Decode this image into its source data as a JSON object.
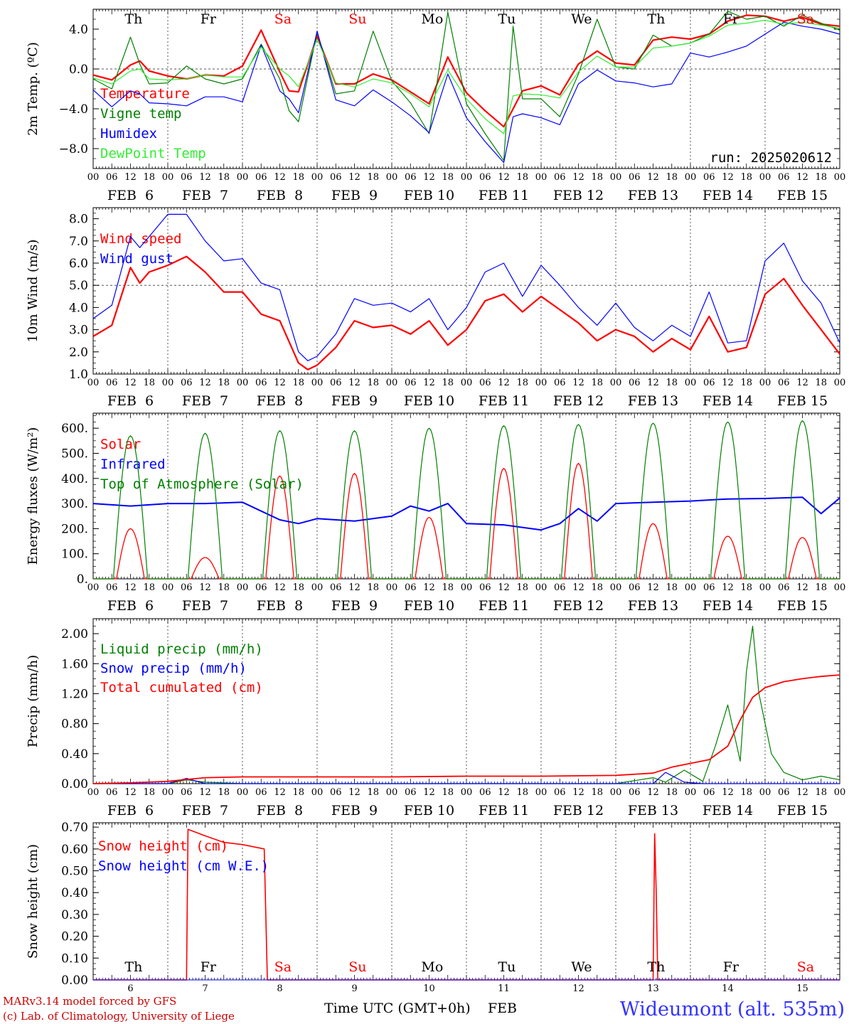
{
  "colors": {
    "red": "#ff0000",
    "green": "#008000",
    "blue": "#0000ff",
    "lightgreen": "#33ee33",
    "black": "#000000",
    "darkred": "#cc0000",
    "title": "#3333ff"
  },
  "footer": {
    "credit_line1": "MARv3.14 model forced by GFS",
    "credit_line2": "(c) Lab. of Climatology, University of Liege",
    "axis_title": "Time UTC (GMT+0h)",
    "month": "FEB",
    "station": "Wideumont (alt. 535m)"
  },
  "days": [
    {
      "label": "Th",
      "weekend": false,
      "date": "FEB  6",
      "num": "6"
    },
    {
      "label": "Fr",
      "weekend": false,
      "date": "FEB  7",
      "num": "7"
    },
    {
      "label": "Sa",
      "weekend": true,
      "date": "FEB  8",
      "num": "8"
    },
    {
      "label": "Su",
      "weekend": true,
      "date": "FEB  9",
      "num": "9"
    },
    {
      "label": "Mo",
      "weekend": false,
      "date": "FEB 10",
      "num": "10"
    },
    {
      "label": "Tu",
      "weekend": false,
      "date": "FEB 11",
      "num": "11"
    },
    {
      "label": "We",
      "weekend": false,
      "date": "FEB 12",
      "num": "12"
    },
    {
      "label": "Th",
      "weekend": false,
      "date": "FEB 13",
      "num": "13"
    },
    {
      "label": "Fr",
      "weekend": false,
      "date": "FEB 14",
      "num": "14"
    },
    {
      "label": "Sa",
      "weekend": true,
      "date": "FEB 15",
      "num": "15"
    }
  ],
  "hour_ticks": [
    "00",
    "06",
    "12",
    "18"
  ],
  "chart_data": [
    {
      "type": "line",
      "ylabel": "2m Temp. (ºC)",
      "ylim": [
        -10,
        6
      ],
      "yticks": [
        -8,
        -4,
        0,
        4
      ],
      "tick_labels": [
        "−8.0",
        "−4.0",
        "0.0",
        "4.0"
      ],
      "ref_line": 0,
      "annotation": "run: 2025020612",
      "x_unit": "hours since FEB 6 00 UTC",
      "series": [
        {
          "name": "Temperature",
          "color": "red",
          "width": 2.2,
          "x": [
            0,
            6,
            12,
            15,
            18,
            24,
            30,
            36,
            42,
            48,
            54,
            60,
            63,
            66,
            72,
            78,
            84,
            90,
            96,
            102,
            108,
            114,
            120,
            126,
            132,
            135,
            138,
            144,
            150,
            156,
            162,
            168,
            174,
            180,
            186,
            192,
            198,
            204,
            210,
            216,
            222,
            228,
            234,
            240
          ],
          "y": [
            -0.6,
            -1.1,
            0.4,
            0.8,
            -0.2,
            -0.7,
            -1.0,
            -0.6,
            -0.7,
            0.3,
            3.9,
            -0.3,
            -2.2,
            -2.3,
            3.3,
            -1.5,
            -1.5,
            -0.5,
            -1.1,
            -2.3,
            -3.5,
            1.2,
            -2.4,
            -4.2,
            -5.8,
            -4.0,
            -2.2,
            -1.7,
            -2.6,
            0.5,
            1.8,
            0.6,
            0.4,
            2.9,
            3.2,
            3.0,
            3.5,
            4.8,
            5.4,
            5.3,
            4.8,
            5.2,
            4.5,
            4.3
          ]
        },
        {
          "name": "Vigne temp",
          "color": "green",
          "width": 1.2,
          "x": [
            0,
            6,
            12,
            15,
            18,
            24,
            30,
            36,
            42,
            48,
            54,
            60,
            63,
            66,
            72,
            78,
            84,
            90,
            96,
            102,
            108,
            114,
            120,
            126,
            132,
            135,
            138,
            144,
            150,
            156,
            162,
            168,
            174,
            180,
            186,
            192,
            198,
            204,
            210,
            216,
            222,
            228,
            234,
            240
          ],
          "y": [
            -1.0,
            -2.0,
            3.2,
            0.5,
            -1.5,
            -1.4,
            0.3,
            -1.0,
            -1.5,
            -1.0,
            2.5,
            -1.0,
            -4.2,
            -5.3,
            3.7,
            -2.5,
            -2.2,
            3.8,
            -1.2,
            -3.4,
            -6.5,
            5.7,
            -3.5,
            -6.5,
            -9.2,
            4.3,
            -3.0,
            -3.0,
            -4.8,
            -0.5,
            5.0,
            0.2,
            0.0,
            3.4,
            2.3,
            2.6,
            3.5,
            5.8,
            5.0,
            5.3,
            4.3,
            5.4,
            4.6,
            3.9
          ]
        },
        {
          "name": "Humidex",
          "color": "blue",
          "width": 1.2,
          "x": [
            0,
            6,
            12,
            15,
            18,
            24,
            30,
            36,
            42,
            48,
            54,
            60,
            63,
            66,
            72,
            78,
            84,
            90,
            96,
            102,
            108,
            114,
            120,
            126,
            132,
            135,
            138,
            144,
            150,
            156,
            162,
            168,
            174,
            180,
            186,
            192,
            198,
            204,
            210,
            216,
            222,
            228,
            234,
            240
          ],
          "y": [
            -2.1,
            -3.8,
            -2.2,
            -2.5,
            -3.4,
            -3.5,
            -3.7,
            -2.8,
            -2.8,
            -3.3,
            2.4,
            -2.2,
            -3.0,
            -4.4,
            3.8,
            -3.1,
            -3.7,
            -2.1,
            -3.3,
            -4.7,
            -6.4,
            -0.5,
            -4.9,
            -7.3,
            -9.4,
            -4.8,
            -4.5,
            -4.9,
            -5.6,
            -1.5,
            -0.1,
            -1.2,
            -1.4,
            -1.8,
            -1.5,
            1.6,
            1.2,
            1.7,
            2.3,
            3.5,
            4.7,
            4.3,
            4.0,
            3.5
          ]
        },
        {
          "name": "DewPoint Temp",
          "color": "lightgreen",
          "width": 1.2,
          "x": [
            0,
            6,
            12,
            15,
            18,
            24,
            30,
            36,
            42,
            48,
            54,
            60,
            63,
            66,
            72,
            78,
            84,
            90,
            96,
            102,
            108,
            114,
            120,
            126,
            132,
            135,
            138,
            144,
            150,
            156,
            162,
            168,
            174,
            180,
            186,
            192,
            198,
            204,
            210,
            216,
            222,
            228,
            234,
            240
          ],
          "y": [
            -0.9,
            -1.5,
            -0.2,
            0.0,
            -1.0,
            -1.1,
            -1.0,
            -0.6,
            -0.8,
            -0.8,
            2.2,
            0.0,
            -0.7,
            -1.8,
            3.0,
            -1.4,
            -1.8,
            -1.0,
            -1.4,
            -2.5,
            -3.8,
            -0.1,
            -3.0,
            -5.0,
            -6.5,
            -2.7,
            -2.5,
            -2.6,
            -2.9,
            -0.3,
            1.3,
            0.2,
            0.2,
            2.1,
            2.3,
            2.6,
            3.3,
            4.4,
            4.6,
            4.9,
            4.5,
            4.7,
            4.4,
            4.1
          ]
        }
      ]
    },
    {
      "type": "line",
      "ylabel": "10m Wind (m/s)",
      "ylim": [
        1,
        8.5
      ],
      "yticks": [
        1,
        2,
        3,
        4,
        5,
        6,
        7,
        8
      ],
      "tick_labels": [
        "1.0",
        "2.0",
        "3.0",
        "4.0",
        "5.0",
        "6.0",
        "7.0",
        "8.0"
      ],
      "ref_line": 5,
      "series": [
        {
          "name": "Wind speed",
          "color": "red",
          "width": 2.2,
          "x": [
            0,
            6,
            12,
            15,
            18,
            24,
            30,
            36,
            42,
            48,
            54,
            60,
            66,
            69,
            72,
            78,
            84,
            90,
            96,
            102,
            108,
            114,
            120,
            126,
            132,
            138,
            144,
            150,
            156,
            162,
            168,
            174,
            180,
            186,
            192,
            198,
            204,
            210,
            216,
            222,
            228,
            234,
            240
          ],
          "y": [
            2.7,
            3.2,
            5.8,
            5.1,
            5.6,
            5.9,
            6.3,
            5.6,
            4.7,
            4.7,
            3.7,
            3.4,
            1.5,
            1.2,
            1.4,
            2.2,
            3.4,
            3.1,
            3.2,
            2.8,
            3.4,
            2.3,
            3.0,
            4.3,
            4.6,
            3.8,
            4.5,
            3.9,
            3.3,
            2.5,
            3.0,
            2.7,
            2.0,
            2.6,
            2.1,
            3.6,
            2.0,
            2.2,
            4.6,
            5.3,
            4.1,
            3.0,
            1.9
          ]
        },
        {
          "name": "Wind gust",
          "color": "blue",
          "width": 1.2,
          "x": [
            0,
            6,
            12,
            15,
            18,
            24,
            30,
            36,
            42,
            48,
            54,
            60,
            66,
            69,
            72,
            78,
            84,
            90,
            96,
            102,
            108,
            114,
            120,
            126,
            132,
            138,
            144,
            150,
            156,
            162,
            168,
            174,
            180,
            186,
            192,
            198,
            204,
            210,
            216,
            222,
            228,
            234,
            240
          ],
          "y": [
            3.5,
            4.1,
            7.2,
            6.7,
            7.2,
            8.2,
            8.2,
            7.0,
            6.1,
            6.2,
            5.1,
            4.8,
            2.0,
            1.6,
            1.8,
            2.8,
            4.4,
            4.1,
            4.2,
            3.8,
            4.4,
            3.0,
            4.0,
            5.6,
            6.0,
            4.5,
            5.9,
            5.0,
            4.0,
            3.2,
            4.2,
            3.1,
            2.5,
            3.2,
            2.7,
            4.7,
            2.4,
            2.5,
            6.1,
            6.9,
            5.2,
            4.2,
            2.4
          ]
        }
      ]
    },
    {
      "type": "line",
      "ylabel": "Energy fluxes (W/m²)",
      "ylim": [
        0,
        660
      ],
      "yticks": [
        0,
        100,
        200,
        300,
        400,
        500,
        600
      ],
      "tick_labels": [
        "0.",
        "100.",
        "200.",
        "300.",
        "400.",
        "500.",
        "600."
      ],
      "ref_line": null,
      "series": [
        {
          "name": "Solar",
          "color": "red",
          "width": 1.3,
          "kind": "solar",
          "peaks": [
            200,
            85,
            410,
            420,
            245,
            440,
            460,
            220,
            170,
            165
          ]
        },
        {
          "name": "Infrared",
          "color": "blue",
          "width": 2.0,
          "x": [
            0,
            12,
            24,
            36,
            48,
            60,
            66,
            72,
            84,
            96,
            102,
            108,
            114,
            120,
            132,
            144,
            150,
            156,
            162,
            168,
            180,
            192,
            204,
            216,
            228,
            234,
            240
          ],
          "y": [
            300,
            290,
            300,
            300,
            305,
            235,
            220,
            240,
            230,
            250,
            290,
            270,
            300,
            220,
            215,
            195,
            220,
            280,
            230,
            300,
            305,
            310,
            318,
            320,
            325,
            260,
            322
          ]
        },
        {
          "name": "Top of Atmosphere (Solar)",
          "color": "green",
          "width": 1.2,
          "kind": "solar",
          "peaks": [
            570,
            580,
            590,
            590,
            600,
            610,
            615,
            620,
            625,
            630
          ]
        }
      ]
    },
    {
      "type": "line",
      "ylabel": "Precip (mm/h)",
      "ylim": [
        0,
        2.2
      ],
      "yticks": [
        0,
        0.4,
        0.8,
        1.2,
        1.6,
        2.0
      ],
      "tick_labels": [
        "0.00",
        "0.40",
        "0.80",
        "1.20",
        "1.60",
        "2.00"
      ],
      "ref_line": null,
      "series": [
        {
          "name": "Liquid precip (mm/h)",
          "color": "green",
          "width": 1.2,
          "x": [
            0,
            24,
            30,
            36,
            48,
            96,
            120,
            144,
            168,
            180,
            184,
            190,
            196,
            200,
            204,
            208,
            210,
            212,
            214,
            218,
            222,
            228,
            234,
            240
          ],
          "y": [
            0,
            0,
            0.05,
            0.02,
            0,
            0,
            0,
            0,
            0,
            0.08,
            0.02,
            0.18,
            0.03,
            0.5,
            1.05,
            0.3,
            1.5,
            2.1,
            1.2,
            0.4,
            0.15,
            0.05,
            0.1,
            0.05
          ]
        },
        {
          "name": "Snow precip (mm/h)",
          "color": "blue",
          "width": 1.2,
          "x": [
            0,
            24,
            30,
            36,
            48,
            180,
            184,
            190,
            196,
            240
          ],
          "y": [
            0,
            0,
            0.07,
            0,
            0,
            0,
            0.15,
            0.02,
            0,
            0
          ]
        },
        {
          "name": "Total cumulated (cm)",
          "color": "red",
          "width": 1.8,
          "x": [
            0,
            12,
            24,
            36,
            48,
            72,
            96,
            120,
            144,
            168,
            180,
            186,
            192,
            198,
            204,
            208,
            212,
            216,
            222,
            228,
            234,
            240
          ],
          "y": [
            0,
            0.01,
            0.03,
            0.08,
            0.09,
            0.09,
            0.09,
            0.1,
            0.1,
            0.11,
            0.14,
            0.22,
            0.27,
            0.32,
            0.5,
            0.85,
            1.15,
            1.28,
            1.36,
            1.4,
            1.43,
            1.45
          ]
        }
      ]
    },
    {
      "type": "line",
      "ylabel": "Snow height (cm)",
      "ylim": [
        0,
        0.72
      ],
      "yticks": [
        0,
        0.1,
        0.2,
        0.3,
        0.4,
        0.5,
        0.6,
        0.7
      ],
      "tick_labels": [
        "0.00",
        "0.10",
        "0.20",
        "0.30",
        "0.40",
        "0.50",
        "0.60",
        "0.70"
      ],
      "ref_line": null,
      "series": [
        {
          "name": "Snow height (cm)",
          "color": "red",
          "width": 1.6,
          "x": [
            0,
            30,
            30.5,
            36,
            42,
            48,
            55,
            56,
            180,
            180.5,
            181,
            181.5,
            240
          ],
          "y": [
            0,
            0,
            0.69,
            0.66,
            0.63,
            0.62,
            0.6,
            0,
            0,
            0.67,
            0.4,
            0,
            0
          ]
        },
        {
          "name": "Snow height (cm W.E.)",
          "color": "blue",
          "width": 1.0,
          "x": [
            0,
            240
          ],
          "y": [
            0,
            0
          ]
        }
      ]
    }
  ]
}
